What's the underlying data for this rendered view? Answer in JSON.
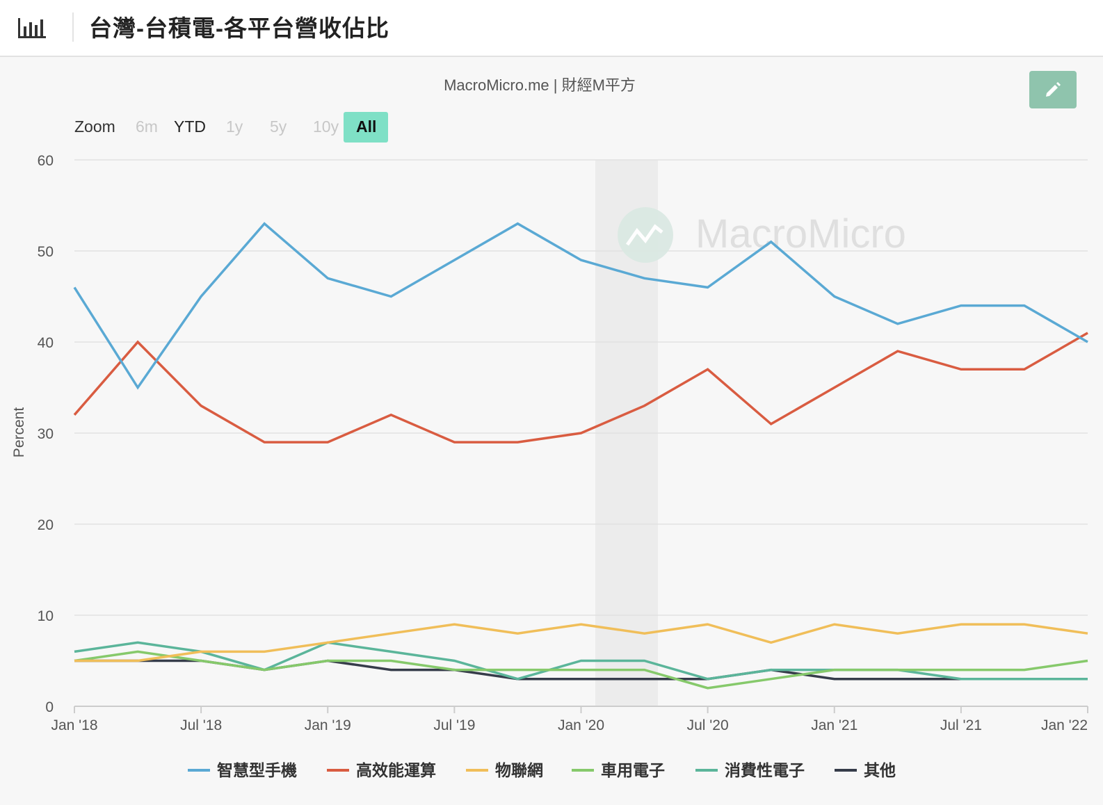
{
  "header": {
    "title": "台灣-台積電-各平台營收佔比",
    "icon": "bar-chart-icon"
  },
  "toolbar": {
    "edit_icon": "pencil-icon",
    "edit_color": "#8fc4ad"
  },
  "chart_data": {
    "type": "line",
    "subtitle": "MacroMicro.me | 財經M平方",
    "watermark": "MacroMicro",
    "ylabel": "Percent",
    "ylim": [
      0,
      60
    ],
    "yticks": [
      "0",
      "10",
      "20",
      "30",
      "40",
      "50",
      "60"
    ],
    "xlim": [
      "2018-01",
      "2022-01"
    ],
    "xticks": [
      "Jan '18",
      "Jul '18",
      "Jan '19",
      "Jul '19",
      "Jan '20",
      "Jul '20",
      "Jan '21",
      "Jul '21",
      "Jan '22"
    ],
    "x": [
      "2018Q1",
      "2018Q2",
      "2018Q3",
      "2018Q4",
      "2019Q1",
      "2019Q2",
      "2019Q3",
      "2019Q4",
      "2020Q1",
      "2020Q2",
      "2020Q3",
      "2020Q4",
      "2021Q1",
      "2021Q2",
      "2021Q3",
      "2021Q4",
      "2022Q1"
    ],
    "recession_band": [
      "2020-02",
      "2020-05"
    ],
    "grid": true,
    "legend_position": "bottom",
    "zoom": {
      "label": "Zoom",
      "buttons": [
        "6m",
        "YTD",
        "1y",
        "5y",
        "10y",
        "All"
      ],
      "active": "All",
      "enabled": [
        "YTD",
        "All"
      ]
    },
    "series": [
      {
        "name": "智慧型手機",
        "color": "#5aa9d4",
        "values": [
          46,
          35,
          45,
          53,
          47,
          45,
          49,
          53,
          49,
          47,
          46,
          51,
          45,
          42,
          44,
          44,
          40
        ]
      },
      {
        "name": "高效能運算",
        "color": "#d95c41",
        "values": [
          32,
          40,
          33,
          29,
          29,
          32,
          29,
          29,
          30,
          33,
          37,
          31,
          35,
          39,
          37,
          37,
          41
        ]
      },
      {
        "name": "物聯網",
        "color": "#f0be59",
        "values": [
          5,
          5,
          6,
          6,
          7,
          8,
          9,
          8,
          9,
          8,
          9,
          7,
          9,
          8,
          9,
          9,
          8
        ]
      },
      {
        "name": "車用電子",
        "color": "#86c96b",
        "values": [
          5,
          6,
          5,
          4,
          5,
          5,
          4,
          4,
          4,
          4,
          2,
          3,
          4,
          4,
          4,
          4,
          5
        ]
      },
      {
        "name": "消費性電子",
        "color": "#5bb59a",
        "values": [
          6,
          7,
          6,
          4,
          7,
          6,
          5,
          3,
          5,
          5,
          3,
          4,
          4,
          4,
          3,
          3,
          3
        ]
      },
      {
        "name": "其他",
        "color": "#363c4a",
        "values": [
          5,
          5,
          5,
          4,
          5,
          4,
          4,
          3,
          3,
          3,
          3,
          4,
          3,
          3,
          3,
          3,
          3
        ]
      }
    ]
  }
}
